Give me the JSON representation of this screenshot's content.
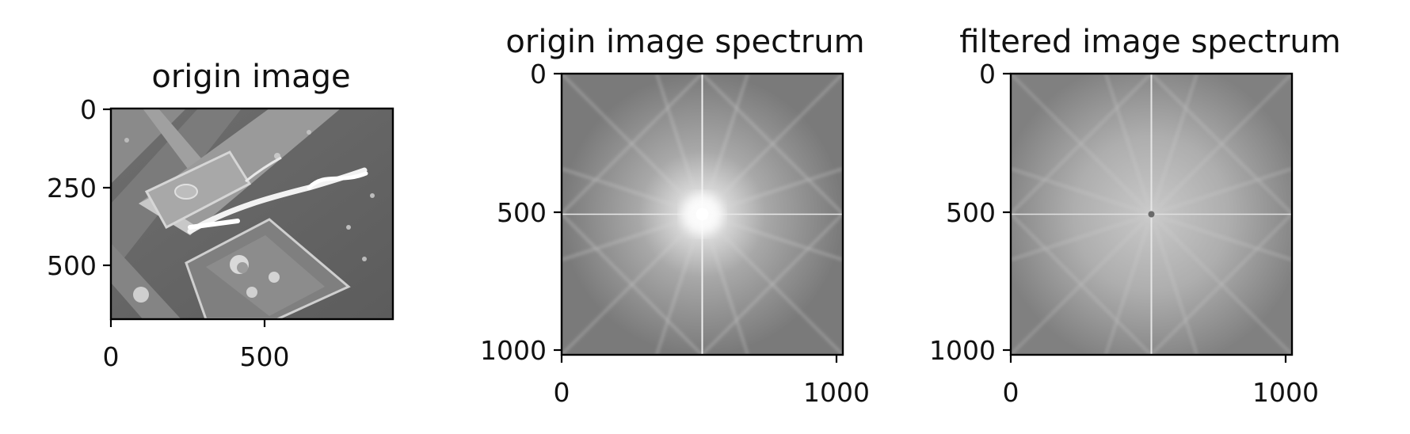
{
  "figure": {
    "panels": [
      {
        "title": "origin image",
        "xticks": [
          "0",
          "500"
        ],
        "yticks": [
          "0",
          "250",
          "500"
        ],
        "xrange": [
          0,
          900
        ],
        "yrange": [
          0,
          675
        ],
        "image": "grayscale micrograph of microstructures with a bright filament"
      },
      {
        "title": "origin image spectrum",
        "xticks": [
          "0",
          "1000"
        ],
        "yticks": [
          "0",
          "500",
          "1000"
        ],
        "xrange": [
          0,
          1024
        ],
        "yrange": [
          0,
          1024
        ],
        "image": "fourier magnitude spectrum with bright center"
      },
      {
        "title": "filtered image spectrum",
        "xticks": [
          "0",
          "1000"
        ],
        "yticks": [
          "0",
          "500",
          "1000"
        ],
        "xrange": [
          0,
          1024
        ],
        "yrange": [
          0,
          1024
        ],
        "image": "fourier magnitude spectrum with center suppressed"
      }
    ]
  }
}
